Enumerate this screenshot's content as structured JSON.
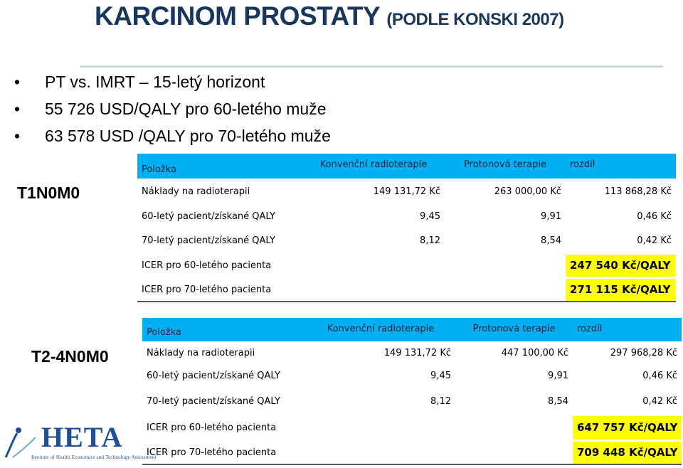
{
  "slide": {
    "title_main": "KARCINOM PROSTATY",
    "title_sub": "(PODLE KONSKI 2007)",
    "bullets": [
      "PT vs. IMRT – 15-letý horizont",
      "55 726 USD/QALY pro 60-letého muže",
      "63 578 USD /QALY pro 70-letého muže"
    ],
    "colors": {
      "title": "#17375e",
      "header_fill": "#00b0f0",
      "highlight": "#ffff00"
    }
  },
  "table1": {
    "stage": "T1N0M0",
    "headers": [
      "Položka",
      "Konvenční radioterapie",
      "Protonová terapie",
      "rozdíl"
    ],
    "rows": [
      [
        "Náklady na radioterapii",
        "149 131,72 Kč",
        "263 000,00 Kč",
        "113 868,28 Kč"
      ],
      [
        "60-letý pacient/získané QALY",
        "9,45",
        "9,91",
        "0,46 Kč"
      ],
      [
        "70-letý pacient/získané QALY",
        "8,12",
        "8,54",
        "0,42 Kč"
      ]
    ],
    "icer": [
      {
        "label": "ICER pro 60-letého pacienta",
        "value": "247 540 Kč/QALY"
      },
      {
        "label": "ICER pro 70-letého pacienta",
        "value": "271 115 Kč/QALY"
      }
    ]
  },
  "table2": {
    "stage": "T2-4N0M0",
    "headers": [
      "Položka",
      "Konvenční radioterapie",
      "Protonová terapie",
      "rozdíl"
    ],
    "rows": [
      [
        "Náklady na radioterapii",
        "149 131,72 Kč",
        "447 100,00 Kč",
        "297 968,28 Kč"
      ],
      [
        "60-letý pacient/získané QALY",
        "9,45",
        "9,91",
        "0,46 Kč"
      ],
      [
        "70-letý pacient/získané QALY",
        "8,12",
        "8,54",
        "0,42 Kč"
      ]
    ],
    "icer": [
      {
        "label": "ICER pro 60-letého pacienta",
        "value": "647 757 Kč/QALY"
      },
      {
        "label": "ICER pro 70-letého pacienta",
        "value": "709 448 Kč/QALY"
      }
    ]
  },
  "logo": {
    "name": "HETA",
    "subtitle": "Institute of Health Economics and Technology Assessment",
    "icon": "heta-logo-icon"
  }
}
